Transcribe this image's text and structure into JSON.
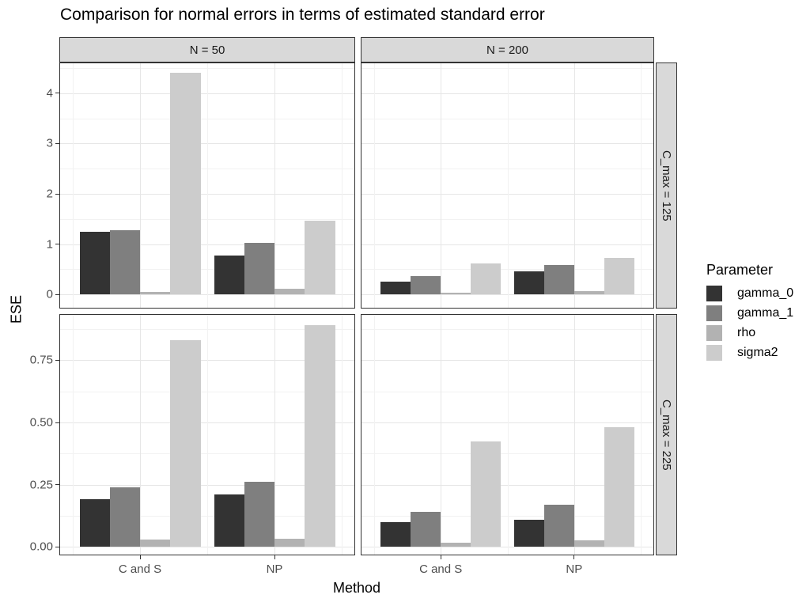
{
  "title": "Comparison for normal errors in terms of estimated standard error",
  "axes": {
    "x_title": "Method",
    "y_title": "ESE"
  },
  "legend": {
    "title": "Parameter",
    "items": [
      {
        "label": "gamma_0",
        "color": "#333333"
      },
      {
        "label": "gamma_1",
        "color": "#7f7f7f"
      },
      {
        "label": "rho",
        "color": "#b2b2b2"
      },
      {
        "label": "sigma2",
        "color": "#cccccc"
      }
    ]
  },
  "facets": {
    "col_labels": [
      "N = 50",
      "N = 200"
    ],
    "row_labels": [
      "C_max = 125",
      "C_max = 225"
    ]
  },
  "style": {
    "strip_fill": "#d9d9d9",
    "panel_border": "#333333",
    "grid_major": "#e6e6e6",
    "grid_minor": "#f2f2f2",
    "axis_text": "#4d4d4d"
  },
  "chart_data": {
    "type": "bar",
    "title": "Comparison for normal errors in terms of estimated standard error",
    "xlabel": "Method",
    "ylabel": "ESE",
    "categories": [
      "C and S",
      "NP"
    ],
    "series_names": [
      "gamma_0",
      "gamma_1",
      "rho",
      "sigma2"
    ],
    "legend_position": "right",
    "grid": true,
    "x_range": [
      0.4,
      2.6
    ],
    "bar_width": 0.225,
    "x_minor_positions": [
      0.5,
      1.5,
      2.5
    ],
    "facet_cols": [
      "N = 50",
      "N = 200"
    ],
    "facet_rows": [
      {
        "label": "C_max = 125",
        "ylim": [
          -0.28,
          4.61
        ],
        "yticks": [
          0,
          1,
          2,
          3,
          4
        ],
        "ytick_labels": [
          "0",
          "1",
          "2",
          "3",
          "4"
        ],
        "minor_ticks": [
          0.5,
          1.5,
          2.5,
          3.5,
          4.5
        ]
      },
      {
        "label": "C_max = 225",
        "ylim": [
          -0.035,
          0.936
        ],
        "yticks": [
          0,
          0.25,
          0.5,
          0.75
        ],
        "ytick_labels": [
          "0.00",
          "0.25",
          "0.50",
          "0.75"
        ],
        "minor_ticks": [
          0.125,
          0.375,
          0.625,
          0.875
        ]
      }
    ],
    "panels": [
      {
        "row": 0,
        "col": 0,
        "facet_col": "N = 50",
        "facet_row": "C_max = 125",
        "series": [
          {
            "name": "gamma_0",
            "values": [
              1.24,
              0.78
            ]
          },
          {
            "name": "gamma_1",
            "values": [
              1.28,
              1.03
            ]
          },
          {
            "name": "rho",
            "values": [
              0.05,
              0.12
            ]
          },
          {
            "name": "sigma2",
            "values": [
              4.41,
              1.47
            ]
          }
        ]
      },
      {
        "row": 0,
        "col": 1,
        "facet_col": "N = 200",
        "facet_row": "C_max = 125",
        "series": [
          {
            "name": "gamma_0",
            "values": [
              0.25,
              0.46
            ]
          },
          {
            "name": "gamma_1",
            "values": [
              0.37,
              0.59
            ]
          },
          {
            "name": "rho",
            "values": [
              0.04,
              0.07
            ]
          },
          {
            "name": "sigma2",
            "values": [
              0.61,
              0.72
            ]
          }
        ]
      },
      {
        "row": 1,
        "col": 0,
        "facet_col": "N = 50",
        "facet_row": "C_max = 225",
        "series": [
          {
            "name": "gamma_0",
            "values": [
              0.19,
              0.21
            ]
          },
          {
            "name": "gamma_1",
            "values": [
              0.24,
              0.26
            ]
          },
          {
            "name": "rho",
            "values": [
              0.028,
              0.032
            ]
          },
          {
            "name": "sigma2",
            "values": [
              0.83,
              0.89
            ]
          }
        ]
      },
      {
        "row": 1,
        "col": 1,
        "facet_col": "N = 200",
        "facet_row": "C_max = 225",
        "series": [
          {
            "name": "gamma_0",
            "values": [
              0.1,
              0.11
            ]
          },
          {
            "name": "gamma_1",
            "values": [
              0.14,
              0.17
            ]
          },
          {
            "name": "rho",
            "values": [
              0.016,
              0.025
            ]
          },
          {
            "name": "sigma2",
            "values": [
              0.425,
              0.48
            ]
          }
        ]
      }
    ]
  }
}
